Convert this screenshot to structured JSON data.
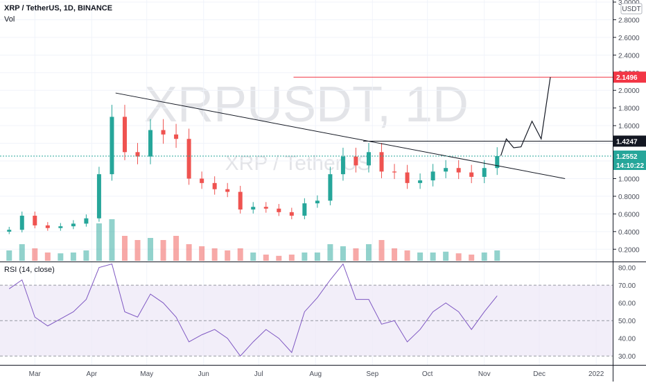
{
  "header": {
    "symbol": "XRP / TetherUS, 1D, BINANCE",
    "vol_label": "Vol"
  },
  "watermark": {
    "ticker": "XRPUSDT, 1D",
    "name": "XRP / TetherUS"
  },
  "price_axis": {
    "currency": "USDT",
    "ticks": [
      "3.0000",
      "2.8000",
      "2.6000",
      "2.4000",
      "2.2000",
      "2.0000",
      "1.8000",
      "1.6000",
      "1.4000",
      "1.2000",
      "1.0000",
      "0.8000",
      "0.6000",
      "0.4000",
      "0.2000"
    ],
    "tick_values": [
      3.0,
      2.8,
      2.6,
      2.4,
      2.2,
      2.0,
      1.8,
      1.6,
      1.4,
      1.2,
      1.0,
      0.8,
      0.6,
      0.4,
      0.2
    ]
  },
  "badges": {
    "target": {
      "text": "2.1496",
      "value": 2.1496,
      "color": "#f23645"
    },
    "resistance": {
      "text": "1.4247",
      "value": 1.4247,
      "color": "#131722"
    },
    "last": {
      "text": "1.2552",
      "value": 1.2552,
      "color": "#26a69a",
      "countdown": "14:10:22"
    }
  },
  "rsi": {
    "label": "RSI (14, close)",
    "ticks": [
      "80.00",
      "70.00",
      "60.00",
      "50.00",
      "40.00",
      "30.00"
    ],
    "tick_values": [
      80,
      70,
      60,
      50,
      40,
      30
    ],
    "band_upper": 70,
    "band_lower": 30,
    "line_color": "#7e57c2"
  },
  "time_axis": {
    "labels": [
      "Mar",
      "Apr",
      "May",
      "Jun",
      "Jul",
      "Aug",
      "Sep",
      "Oct",
      "Nov",
      "Dec",
      "2022"
    ]
  },
  "colors": {
    "up": "#26a69a",
    "down": "#ef5350",
    "grid": "#f0f3fa",
    "drawing": "#131722",
    "target_line": "#f23645"
  },
  "chart_data": {
    "type": "candlestick",
    "title": "XRP / TetherUS, 1D, BINANCE",
    "price_series_close": [
      {
        "date": "2021-02-15",
        "close": 0.42
      },
      {
        "date": "2021-02-22",
        "close": 0.58
      },
      {
        "date": "2021-03-01",
        "close": 0.47
      },
      {
        "date": "2021-03-08",
        "close": 0.44
      },
      {
        "date": "2021-03-15",
        "close": 0.46
      },
      {
        "date": "2021-03-22",
        "close": 0.49
      },
      {
        "date": "2021-03-29",
        "close": 0.55
      },
      {
        "date": "2021-04-05",
        "close": 1.05
      },
      {
        "date": "2021-04-12",
        "close": 1.7
      },
      {
        "date": "2021-04-19",
        "close": 1.3
      },
      {
        "date": "2021-04-26",
        "close": 1.25
      },
      {
        "date": "2021-05-03",
        "close": 1.55
      },
      {
        "date": "2021-05-10",
        "close": 1.5
      },
      {
        "date": "2021-05-17",
        "close": 1.45
      },
      {
        "date": "2021-05-24",
        "close": 1.0
      },
      {
        "date": "2021-05-31",
        "close": 0.95
      },
      {
        "date": "2021-06-07",
        "close": 0.88
      },
      {
        "date": "2021-06-14",
        "close": 0.85
      },
      {
        "date": "2021-06-21",
        "close": 0.65
      },
      {
        "date": "2021-06-28",
        "close": 0.68
      },
      {
        "date": "2021-07-05",
        "close": 0.66
      },
      {
        "date": "2021-07-12",
        "close": 0.62
      },
      {
        "date": "2021-07-19",
        "close": 0.58
      },
      {
        "date": "2021-07-26",
        "close": 0.72
      },
      {
        "date": "2021-08-02",
        "close": 0.75
      },
      {
        "date": "2021-08-09",
        "close": 1.05
      },
      {
        "date": "2021-08-16",
        "close": 1.25
      },
      {
        "date": "2021-08-23",
        "close": 1.15
      },
      {
        "date": "2021-08-30",
        "close": 1.3
      },
      {
        "date": "2021-09-06",
        "close": 1.08
      },
      {
        "date": "2021-09-13",
        "close": 1.07
      },
      {
        "date": "2021-09-20",
        "close": 0.95
      },
      {
        "date": "2021-09-27",
        "close": 0.98
      },
      {
        "date": "2021-10-04",
        "close": 1.08
      },
      {
        "date": "2021-10-11",
        "close": 1.12
      },
      {
        "date": "2021-10-18",
        "close": 1.07
      },
      {
        "date": "2021-10-25",
        "close": 1.02
      },
      {
        "date": "2021-11-01",
        "close": 1.12
      },
      {
        "date": "2021-11-08",
        "close": 1.2552
      }
    ],
    "volume_relative": [
      0.25,
      0.4,
      0.3,
      0.2,
      0.18,
      0.2,
      0.25,
      0.9,
      1.0,
      0.6,
      0.5,
      0.55,
      0.5,
      0.6,
      0.4,
      0.35,
      0.3,
      0.25,
      0.3,
      0.2,
      0.15,
      0.12,
      0.15,
      0.2,
      0.2,
      0.4,
      0.35,
      0.3,
      0.4,
      0.5,
      0.3,
      0.25,
      0.2,
      0.2,
      0.22,
      0.18,
      0.15,
      0.2,
      0.25
    ],
    "rsi_series": [
      {
        "date": "2021-02-15",
        "rsi": 68
      },
      {
        "date": "2021-02-22",
        "rsi": 73
      },
      {
        "date": "2021-03-01",
        "rsi": 52
      },
      {
        "date": "2021-03-08",
        "rsi": 47
      },
      {
        "date": "2021-03-15",
        "rsi": 51
      },
      {
        "date": "2021-03-22",
        "rsi": 55
      },
      {
        "date": "2021-03-29",
        "rsi": 62
      },
      {
        "date": "2021-04-05",
        "rsi": 80
      },
      {
        "date": "2021-04-12",
        "rsi": 82
      },
      {
        "date": "2021-04-19",
        "rsi": 55
      },
      {
        "date": "2021-04-26",
        "rsi": 52
      },
      {
        "date": "2021-05-03",
        "rsi": 65
      },
      {
        "date": "2021-05-10",
        "rsi": 60
      },
      {
        "date": "2021-05-17",
        "rsi": 52
      },
      {
        "date": "2021-05-24",
        "rsi": 38
      },
      {
        "date": "2021-05-31",
        "rsi": 42
      },
      {
        "date": "2021-06-07",
        "rsi": 45
      },
      {
        "date": "2021-06-14",
        "rsi": 40
      },
      {
        "date": "2021-06-21",
        "rsi": 30
      },
      {
        "date": "2021-06-28",
        "rsi": 38
      },
      {
        "date": "2021-07-05",
        "rsi": 45
      },
      {
        "date": "2021-07-12",
        "rsi": 40
      },
      {
        "date": "2021-07-19",
        "rsi": 32
      },
      {
        "date": "2021-07-26",
        "rsi": 55
      },
      {
        "date": "2021-08-02",
        "rsi": 63
      },
      {
        "date": "2021-08-09",
        "rsi": 73
      },
      {
        "date": "2021-08-16",
        "rsi": 82
      },
      {
        "date": "2021-08-23",
        "rsi": 62
      },
      {
        "date": "2021-08-30",
        "rsi": 62
      },
      {
        "date": "2021-09-06",
        "rsi": 48
      },
      {
        "date": "2021-09-13",
        "rsi": 50
      },
      {
        "date": "2021-09-20",
        "rsi": 38
      },
      {
        "date": "2021-09-27",
        "rsi": 45
      },
      {
        "date": "2021-10-04",
        "rsi": 55
      },
      {
        "date": "2021-10-11",
        "rsi": 60
      },
      {
        "date": "2021-10-18",
        "rsi": 55
      },
      {
        "date": "2021-10-25",
        "rsi": 45
      },
      {
        "date": "2021-11-01",
        "rsi": 55
      },
      {
        "date": "2021-11-08",
        "rsi": 64
      }
    ],
    "drawings": {
      "descending_trendline": [
        {
          "date": "2021-04-14",
          "price": 1.97
        },
        {
          "date": "2021-12-15",
          "price": 1.0
        }
      ],
      "horizontal_resistance": {
        "price": 1.4247
      },
      "target_level": {
        "price": 2.1496
      },
      "projection_path": [
        {
          "date": "2021-11-10",
          "price": 1.26
        },
        {
          "date": "2021-11-13",
          "price": 1.45
        },
        {
          "date": "2021-11-17",
          "price": 1.35
        },
        {
          "date": "2021-11-21",
          "price": 1.36
        },
        {
          "date": "2021-11-27",
          "price": 1.65
        },
        {
          "date": "2021-12-02",
          "price": 1.45
        },
        {
          "date": "2021-12-07",
          "price": 2.15
        }
      ]
    },
    "ylim": [
      0.1,
      3.0
    ],
    "rsi_ylim": [
      25,
      83
    ]
  }
}
